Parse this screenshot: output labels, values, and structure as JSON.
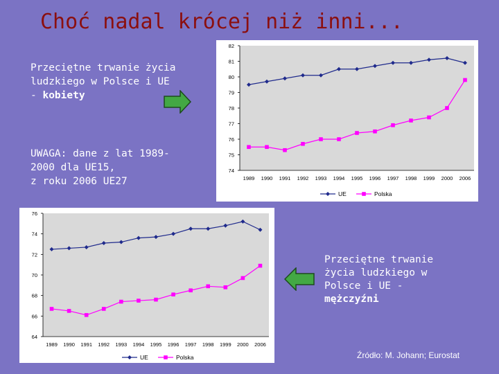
{
  "title": "Choć nadal krócej niż inni...",
  "note_women": {
    "line1": "Przeciętne trwanie życia",
    "line2": "ludzkiego w Polsce i UE",
    "line3_prefix": "- ",
    "line3_bold": "kobiety"
  },
  "note_data": {
    "line1": "UWAGA: dane z lat 1989-",
    "line2": "2000 dla UE15,",
    "line3": "z roku 2006 UE27"
  },
  "note_men": {
    "line1": "Przeciętne trwanie",
    "line2": "życia ludzkiego w",
    "line3": "Polsce i UE -",
    "line4_bold": "mężczyźni"
  },
  "source": "Źródło: M. Johann; Eurostat",
  "colors": {
    "background": "#7b73c4",
    "title": "#8b0f0f",
    "arrow": "#43a844",
    "ue_series": "#1f2a8c",
    "polska_series": "#ff00ff",
    "plot_bg": "#d9d9d9"
  },
  "icons": {
    "arrow_right": "arrow-right-icon",
    "arrow_left": "arrow-left-icon"
  },
  "chart_data": [
    {
      "type": "line",
      "title": "",
      "xlabel": "",
      "ylabel": "",
      "x": [
        "1989",
        "1990",
        "1991",
        "1992",
        "1993",
        "1994",
        "1995",
        "1996",
        "1997",
        "1998",
        "1999",
        "2000",
        "2006"
      ],
      "ylim": [
        74,
        82
      ],
      "yticks": [
        74,
        75,
        76,
        77,
        78,
        79,
        80,
        81,
        82
      ],
      "grid": false,
      "legend": "bottom",
      "series": [
        {
          "name": "UE",
          "marker": "diamond",
          "values": [
            79.5,
            79.7,
            79.9,
            80.1,
            80.1,
            80.5,
            80.5,
            80.7,
            80.9,
            80.9,
            81.1,
            81.2,
            80.9
          ]
        },
        {
          "name": "Polska",
          "marker": "square",
          "values": [
            75.5,
            75.5,
            75.3,
            75.7,
            76.0,
            76.0,
            76.4,
            76.5,
            76.9,
            77.2,
            77.4,
            78.0,
            79.8
          ]
        }
      ]
    },
    {
      "type": "line",
      "title": "",
      "xlabel": "",
      "ylabel": "",
      "x": [
        "1989",
        "1990",
        "1991",
        "1992",
        "1993",
        "1994",
        "1995",
        "1996",
        "1997",
        "1998",
        "1999",
        "2000",
        "2006"
      ],
      "ylim": [
        64,
        76
      ],
      "yticks": [
        64,
        66,
        68,
        70,
        72,
        74,
        76
      ],
      "grid": false,
      "legend": "bottom",
      "series": [
        {
          "name": "UE",
          "marker": "diamond",
          "values": [
            72.5,
            72.6,
            72.7,
            73.1,
            73.2,
            73.6,
            73.7,
            74.0,
            74.5,
            74.5,
            74.8,
            75.2,
            74.4
          ]
        },
        {
          "name": "Polska",
          "marker": "square",
          "values": [
            66.7,
            66.5,
            66.1,
            66.7,
            67.4,
            67.5,
            67.6,
            68.1,
            68.5,
            68.9,
            68.8,
            69.7,
            70.9
          ]
        }
      ]
    }
  ]
}
